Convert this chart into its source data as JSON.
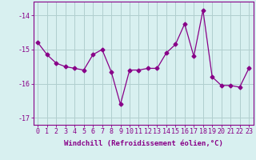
{
  "x": [
    0,
    1,
    2,
    3,
    4,
    5,
    6,
    7,
    8,
    9,
    10,
    11,
    12,
    13,
    14,
    15,
    16,
    17,
    18,
    19,
    20,
    21,
    22,
    23
  ],
  "y": [
    -14.8,
    -15.15,
    -15.4,
    -15.5,
    -15.55,
    -15.6,
    -15.15,
    -15.0,
    -15.65,
    -16.6,
    -15.6,
    -15.6,
    -15.55,
    -15.55,
    -15.1,
    -14.85,
    -14.25,
    -15.2,
    -13.85,
    -15.8,
    -16.05,
    -16.05,
    -16.1,
    -15.55
  ],
  "line_color": "#880088",
  "marker": "D",
  "marker_size": 2.5,
  "bg_color": "#d8f0f0",
  "grid_color": "#b0cece",
  "xlabel": "Windchill (Refroidissement éolien,°C)",
  "xlabel_fontsize": 6.5,
  "tick_fontsize": 6.0,
  "ylim": [
    -17.2,
    -13.6
  ],
  "yticks": [
    -17,
    -16,
    -15,
    -14
  ],
  "xlim": [
    -0.5,
    23.5
  ],
  "xticks": [
    0,
    1,
    2,
    3,
    4,
    5,
    6,
    7,
    8,
    9,
    10,
    11,
    12,
    13,
    14,
    15,
    16,
    17,
    18,
    19,
    20,
    21,
    22,
    23
  ]
}
